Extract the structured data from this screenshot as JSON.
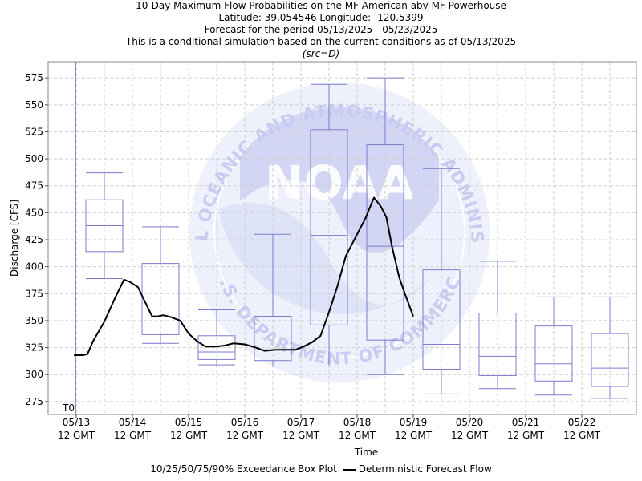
{
  "chart_data": {
    "type": "box",
    "title_lines": [
      "10-Day Maximum Flow Probabilities on the MF American abv MF Powerhouse",
      "Latitude: 39.054546 Longitude: -120.5399",
      "Forecast for the period 05/13/2025 - 05/23/2025",
      "This is a conditional simulation based on the current conditions as of 05/13/2025"
    ],
    "subtitle": "(src=D)",
    "xlabel": "Time",
    "ylabel": "Discharge [CFS]",
    "ylim": [
      263,
      590
    ],
    "y_ticks": [
      275,
      300,
      325,
      350,
      375,
      400,
      425,
      450,
      475,
      500,
      525,
      550,
      575
    ],
    "x_ticks": [
      "05/13",
      "05/14",
      "05/15",
      "05/16",
      "05/17",
      "05/18",
      "05/19",
      "05/20",
      "05/21",
      "05/22"
    ],
    "x_tick_sub": "12 GMT",
    "t0_label": "T0",
    "boxes": [
      {
        "center_day": 0.5,
        "p10": 389,
        "p25": 414,
        "p50": 438,
        "p75": 462,
        "p90": 487
      },
      {
        "center_day": 1.5,
        "p10": 329,
        "p25": 337,
        "p50": 357,
        "p75": 403,
        "p90": 437
      },
      {
        "center_day": 2.5,
        "p10": 309,
        "p25": 314,
        "p50": 321,
        "p75": 336,
        "p90": 360
      },
      {
        "center_day": 3.5,
        "p10": 308,
        "p25": 313,
        "p50": 323,
        "p75": 354,
        "p90": 430
      },
      {
        "center_day": 4.5,
        "p10": 308,
        "p25": 346,
        "p50": 429,
        "p75": 527,
        "p90": 569
      },
      {
        "center_day": 5.5,
        "p10": 300,
        "p25": 332,
        "p50": 419,
        "p75": 513,
        "p90": 575
      },
      {
        "center_day": 6.5,
        "p10": 282,
        "p25": 305,
        "p50": 328,
        "p75": 397,
        "p90": 491
      },
      {
        "center_day": 7.5,
        "p10": 287,
        "p25": 299,
        "p50": 317,
        "p75": 357,
        "p90": 405
      },
      {
        "center_day": 8.5,
        "p10": 281,
        "p25": 294,
        "p50": 310,
        "p75": 345,
        "p90": 372
      },
      {
        "center_day": 9.5,
        "p10": 278,
        "p25": 289,
        "p50": 306,
        "p75": 338,
        "p90": 372
      }
    ],
    "deterministic": {
      "name": "Deterministic Forecast Flow",
      "points": [
        [
          -0.04,
          318
        ],
        [
          0.12,
          318
        ],
        [
          0.2,
          319
        ],
        [
          0.3,
          331
        ],
        [
          0.5,
          349
        ],
        [
          0.7,
          372
        ],
        [
          0.85,
          388
        ],
        [
          0.95,
          386
        ],
        [
          1.1,
          381
        ],
        [
          1.2,
          370
        ],
        [
          1.35,
          354
        ],
        [
          1.45,
          354
        ],
        [
          1.55,
          355
        ],
        [
          1.7,
          353
        ],
        [
          1.85,
          350
        ],
        [
          2.0,
          338
        ],
        [
          2.15,
          331
        ],
        [
          2.3,
          326
        ],
        [
          2.5,
          326
        ],
        [
          2.65,
          327
        ],
        [
          2.8,
          329
        ],
        [
          3.0,
          328
        ],
        [
          3.2,
          325
        ],
        [
          3.35,
          322
        ],
        [
          3.55,
          323
        ],
        [
          3.75,
          323
        ],
        [
          3.9,
          323
        ],
        [
          4.05,
          326
        ],
        [
          4.2,
          330
        ],
        [
          4.35,
          336
        ],
        [
          4.5,
          358
        ],
        [
          4.65,
          382
        ],
        [
          4.8,
          410
        ],
        [
          5.0,
          430
        ],
        [
          5.15,
          445
        ],
        [
          5.3,
          464
        ],
        [
          5.42,
          456
        ],
        [
          5.52,
          446
        ],
        [
          5.62,
          419
        ],
        [
          5.75,
          390
        ],
        [
          5.85,
          375
        ],
        [
          6.0,
          354
        ]
      ]
    },
    "legend": {
      "box_label": "10/25/50/75/90% Exceedance Box Plot",
      "line_label": "Deterministic Forecast Flow"
    },
    "colors": {
      "box": "#7b7bcf",
      "t0_line": "#3b3bb0",
      "deterministic": "#000000",
      "grid": "#cfcfcf",
      "watermark": "#c9ccf2"
    },
    "watermark": {
      "text": "NOAA",
      "ring_top": "NATIONAL OCEANIC AND ATMOSPHERIC ADMINISTRATION",
      "ring_bottom": "U.S. DEPARTMENT OF COMMERCE"
    }
  }
}
